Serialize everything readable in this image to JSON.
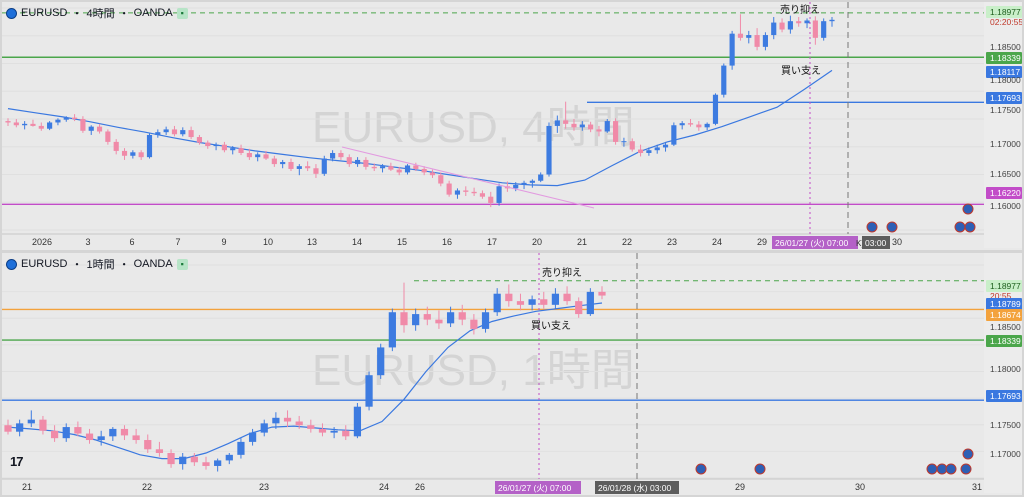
{
  "theme": {
    "up": "#3d7be0",
    "down": "#f08aa8",
    "ma": "#3a78e0",
    "green": "#4ba64b",
    "orange": "#f3a23c",
    "purple": "#c24cc8",
    "blue_line": "#3a78e0",
    "dash_green": "#6ac46a"
  },
  "top": {
    "header": {
      "symbol": "EURUSD",
      "sep1": "・",
      "tf": "4時間",
      "sep2": "・",
      "broker": "OANDA"
    },
    "watermark": "EURUSD, 4時間",
    "price_labels": {
      "p1": "1.18977",
      "p2": "1.18500",
      "p3": "1.18339",
      "p4": "1.18117",
      "p5": "1.18000",
      "p6": "1.17693",
      "p7": "1.17500",
      "p8": "1.17000",
      "p9": "1.16500",
      "p10": "1.16220",
      "p11": "1.16000"
    },
    "countdown": "02:20:55",
    "x_ticks": [
      "2026",
      "3",
      "6",
      "7",
      "9",
      "10",
      "13",
      "14",
      "15",
      "16",
      "17",
      "20",
      "21",
      "22",
      "23",
      "24",
      "29",
      "30"
    ],
    "date_badge": "26/01/27 (火)  07:00",
    "date_badge_small": "K)",
    "time_badge": "03:00",
    "annotations": {
      "sell": "売り抑え",
      "buy": "買い支え"
    }
  },
  "bottom": {
    "header": {
      "symbol": "EURUSD",
      "sep1": "・",
      "tf": "1時間",
      "sep2": "・",
      "broker": "OANDA"
    },
    "watermark": "EURUSD, 1時間",
    "price_labels": {
      "p1": "1.18977",
      "p2": "20:55",
      "p3": "1.18789",
      "p4": "1.18674",
      "p5": "1.18500",
      "p6": "1.18339",
      "p7": "1.18000",
      "p8": "1.17693",
      "p9": "1.17500",
      "p10": "1.17000"
    },
    "x_ticks": [
      "21",
      "22",
      "23",
      "24",
      "26",
      "29",
      "30",
      "31"
    ],
    "date_badge": "26/01/27 (火)  07:00",
    "date_badge2": "26/01/28 (水)  03:00",
    "annotations": {
      "sell": "売り抑え",
      "buy": "買い支え"
    },
    "tv_logo": "17"
  },
  "chart_data": [
    {
      "type": "candlestick",
      "title": "EURUSD・4時間・OANDA",
      "ylim": [
        1.1585,
        1.1905
      ],
      "x_ticks": [
        "2026",
        "3",
        "6",
        "7",
        "9",
        "10",
        "13",
        "14",
        "15",
        "16",
        "17",
        "20",
        "21",
        "22",
        "23",
        "24",
        "29",
        "30"
      ],
      "candles": [
        [
          1.1742,
          1.1746,
          1.1735,
          1.174
        ],
        [
          1.174,
          1.1745,
          1.1733,
          1.1736
        ],
        [
          1.1736,
          1.1742,
          1.173,
          1.1738
        ],
        [
          1.1738,
          1.1744,
          1.1734,
          1.1735
        ],
        [
          1.1735,
          1.174,
          1.1728,
          1.1731
        ],
        [
          1.1731,
          1.1742,
          1.1729,
          1.174
        ],
        [
          1.174,
          1.1746,
          1.1736,
          1.1744
        ],
        [
          1.1744,
          1.1749,
          1.1741,
          1.1747
        ],
        [
          1.1747,
          1.1752,
          1.1742,
          1.1745
        ],
        [
          1.1745,
          1.1749,
          1.1725,
          1.1728
        ],
        [
          1.1728,
          1.1736,
          1.1722,
          1.1734
        ],
        [
          1.1734,
          1.1738,
          1.1724,
          1.1727
        ],
        [
          1.1727,
          1.173,
          1.1708,
          1.1712
        ],
        [
          1.1712,
          1.1716,
          1.1694,
          1.1699
        ],
        [
          1.1699,
          1.1703,
          1.1686,
          1.1692
        ],
        [
          1.1692,
          1.17,
          1.1688,
          1.1697
        ],
        [
          1.1697,
          1.17,
          1.1686,
          1.169
        ],
        [
          1.169,
          1.1724,
          1.1688,
          1.1722
        ],
        [
          1.1722,
          1.173,
          1.1718,
          1.1726
        ],
        [
          1.1726,
          1.1734,
          1.1722,
          1.173
        ],
        [
          1.173,
          1.1735,
          1.172,
          1.1723
        ],
        [
          1.1723,
          1.1733,
          1.172,
          1.1729
        ],
        [
          1.1729,
          1.1734,
          1.1716,
          1.1719
        ],
        [
          1.1719,
          1.1722,
          1.1708,
          1.1711
        ],
        [
          1.1711,
          1.1714,
          1.1702,
          1.1706
        ],
        [
          1.1706,
          1.1711,
          1.17,
          1.1708
        ],
        [
          1.1708,
          1.1712,
          1.1697,
          1.17
        ],
        [
          1.17,
          1.1706,
          1.1694,
          1.1703
        ],
        [
          1.1703,
          1.1708,
          1.1693,
          1.1696
        ],
        [
          1.1696,
          1.1702,
          1.1686,
          1.169
        ],
        [
          1.169,
          1.1697,
          1.1684,
          1.1694
        ],
        [
          1.1694,
          1.1699,
          1.1686,
          1.1688
        ],
        [
          1.1688,
          1.1692,
          1.1676,
          1.168
        ],
        [
          1.168,
          1.1686,
          1.1674,
          1.1683
        ],
        [
          1.1683,
          1.1688,
          1.167,
          1.1673
        ],
        [
          1.1673,
          1.168,
          1.1664,
          1.1677
        ],
        [
          1.1677,
          1.1684,
          1.167,
          1.1674
        ],
        [
          1.1674,
          1.168,
          1.166,
          1.1666
        ],
        [
          1.1666,
          1.1692,
          1.1663,
          1.1688
        ],
        [
          1.1688,
          1.17,
          1.1684,
          1.1696
        ],
        [
          1.1696,
          1.17,
          1.1686,
          1.169
        ],
        [
          1.169,
          1.1694,
          1.1676,
          1.168
        ],
        [
          1.168,
          1.169,
          1.1676,
          1.1686
        ],
        [
          1.1686,
          1.169,
          1.1672,
          1.1676
        ],
        [
          1.1676,
          1.1681,
          1.167,
          1.1674
        ],
        [
          1.1674,
          1.168,
          1.1668,
          1.1677
        ],
        [
          1.1677,
          1.1682,
          1.167,
          1.1672
        ],
        [
          1.1672,
          1.1676,
          1.1664,
          1.1668
        ],
        [
          1.1668,
          1.168,
          1.1665,
          1.1678
        ],
        [
          1.1678,
          1.1682,
          1.167,
          1.1673
        ],
        [
          1.1673,
          1.1677,
          1.1664,
          1.1668
        ],
        [
          1.1668,
          1.1672,
          1.166,
          1.1664
        ],
        [
          1.1664,
          1.1668,
          1.1648,
          1.1652
        ],
        [
          1.1652,
          1.1656,
          1.1633,
          1.1636
        ],
        [
          1.1636,
          1.1645,
          1.163,
          1.1642
        ],
        [
          1.1642,
          1.1648,
          1.1634,
          1.164
        ],
        [
          1.164,
          1.1646,
          1.1634,
          1.1638
        ],
        [
          1.1638,
          1.1642,
          1.163,
          1.1633
        ],
        [
          1.1633,
          1.164,
          1.1618,
          1.1624
        ],
        [
          1.1624,
          1.1652,
          1.162,
          1.1648
        ],
        [
          1.1648,
          1.1655,
          1.164,
          1.1645
        ],
        [
          1.1645,
          1.1654,
          1.1641,
          1.165
        ],
        [
          1.165,
          1.1656,
          1.1644,
          1.1653
        ],
        [
          1.1653,
          1.1658,
          1.1646,
          1.1656
        ],
        [
          1.1656,
          1.1668,
          1.1654,
          1.1665
        ],
        [
          1.1665,
          1.174,
          1.1662,
          1.1735
        ],
        [
          1.1735,
          1.175,
          1.1725,
          1.1743
        ],
        [
          1.1743,
          1.177,
          1.1731,
          1.1738
        ],
        [
          1.1738,
          1.1745,
          1.1728,
          1.1733
        ],
        [
          1.1733,
          1.1742,
          1.1728,
          1.1737
        ],
        [
          1.1737,
          1.1741,
          1.1726,
          1.173
        ],
        [
          1.173,
          1.1735,
          1.172,
          1.1727
        ],
        [
          1.1727,
          1.1745,
          1.1725,
          1.1742
        ],
        [
          1.1742,
          1.1746,
          1.1708,
          1.1712
        ],
        [
          1.1712,
          1.1718,
          1.1705,
          1.1713
        ],
        [
          1.1713,
          1.1717,
          1.1698,
          1.1701
        ],
        [
          1.1701,
          1.1708,
          1.1691,
          1.1696
        ],
        [
          1.1696,
          1.1704,
          1.1692,
          1.17
        ],
        [
          1.17,
          1.1708,
          1.1695,
          1.1704
        ],
        [
          1.1704,
          1.1712,
          1.1698,
          1.1708
        ],
        [
          1.1708,
          1.174,
          1.1706,
          1.1736
        ],
        [
          1.1736,
          1.1742,
          1.173,
          1.1739
        ],
        [
          1.1739,
          1.1745,
          1.1734,
          1.1737
        ],
        [
          1.1737,
          1.1742,
          1.1728,
          1.1733
        ],
        [
          1.1733,
          1.174,
          1.1729,
          1.1738
        ],
        [
          1.1738,
          1.1782,
          1.1736,
          1.178
        ],
        [
          1.178,
          1.1825,
          1.1776,
          1.1822
        ],
        [
          1.1822,
          1.1872,
          1.1816,
          1.1868
        ],
        [
          1.1868,
          1.1896,
          1.1858,
          1.1862
        ],
        [
          1.1862,
          1.1872,
          1.1854,
          1.1866
        ],
        [
          1.1866,
          1.1876,
          1.1844,
          1.1849
        ],
        [
          1.1849,
          1.187,
          1.1844,
          1.1866
        ],
        [
          1.1866,
          1.1892,
          1.186,
          1.1884
        ],
        [
          1.1884,
          1.189,
          1.187,
          1.1874
        ],
        [
          1.1874,
          1.1894,
          1.1868,
          1.1886
        ],
        [
          1.1886,
          1.1892,
          1.1878,
          1.1883
        ],
        [
          1.1883,
          1.189,
          1.1876,
          1.1887
        ],
        [
          1.1887,
          1.1893,
          1.1852,
          1.1862
        ],
        [
          1.1862,
          1.189,
          1.1858,
          1.1886
        ],
        [
          1.1886,
          1.1892,
          1.1878,
          1.1888
        ]
      ],
      "ma": [
        1.176,
        1.1754,
        1.1748,
        1.1741,
        1.1733,
        1.1726,
        1.1718,
        1.1711,
        1.1705,
        1.1699,
        1.1694,
        1.1689,
        1.1685,
        1.1681,
        1.1676,
        1.1671,
        1.1665,
        1.1659,
        1.1653,
        1.165,
        1.1649,
        1.1657,
        1.1678,
        1.1698,
        1.1712,
        1.1722,
        1.1734,
        1.1748,
        1.1762,
        1.1788,
        1.1815
      ],
      "hlines": [
        {
          "price": 1.1898,
          "style": "dashed",
          "color": "green"
        },
        {
          "price": 1.1834,
          "style": "solid",
          "color": "green"
        },
        {
          "price": 1.1769,
          "style": "solid",
          "color": "blue"
        },
        {
          "price": 1.1622,
          "style": "solid",
          "color": "purple"
        }
      ]
    },
    {
      "type": "candlestick",
      "title": "EURUSD・1時間・OANDA",
      "ylim": [
        1.1685,
        1.1915
      ],
      "x_ticks": [
        "21",
        "22",
        "23",
        "24",
        "26",
        "29",
        "30",
        "31"
      ],
      "candles": [
        [
          1.1742,
          1.1748,
          1.1732,
          1.1735
        ],
        [
          1.1735,
          1.1748,
          1.173,
          1.1744
        ],
        [
          1.1744,
          1.1758,
          1.174,
          1.1748
        ],
        [
          1.1748,
          1.1752,
          1.1732,
          1.1736
        ],
        [
          1.1736,
          1.1742,
          1.1724,
          1.1728
        ],
        [
          1.1728,
          1.1744,
          1.1724,
          1.174
        ],
        [
          1.174,
          1.1746,
          1.173,
          1.1733
        ],
        [
          1.1733,
          1.1738,
          1.1722,
          1.1726
        ],
        [
          1.1726,
          1.1736,
          1.172,
          1.173
        ],
        [
          1.173,
          1.174,
          1.1725,
          1.1738
        ],
        [
          1.1738,
          1.1742,
          1.1726,
          1.1731
        ],
        [
          1.1731,
          1.1738,
          1.1722,
          1.1726
        ],
        [
          1.1726,
          1.1732,
          1.1712,
          1.1716
        ],
        [
          1.1716,
          1.1724,
          1.1708,
          1.1712
        ],
        [
          1.1712,
          1.1716,
          1.1696,
          1.17
        ],
        [
          1.17,
          1.1712,
          1.1694,
          1.1708
        ],
        [
          1.1708,
          1.1712,
          1.1698,
          1.1702
        ],
        [
          1.1702,
          1.1708,
          1.1694,
          1.1698
        ],
        [
          1.1698,
          1.1706,
          1.1692,
          1.1704
        ],
        [
          1.1704,
          1.1712,
          1.17,
          1.171
        ],
        [
          1.171,
          1.1728,
          1.1706,
          1.1724
        ],
        [
          1.1724,
          1.1738,
          1.172,
          1.1734
        ],
        [
          1.1734,
          1.1748,
          1.173,
          1.1744
        ],
        [
          1.1744,
          1.1756,
          1.1738,
          1.175
        ],
        [
          1.175,
          1.1758,
          1.174,
          1.1746
        ],
        [
          1.1746,
          1.1752,
          1.1738,
          1.1742
        ],
        [
          1.1742,
          1.1748,
          1.1734,
          1.1738
        ],
        [
          1.1738,
          1.1744,
          1.173,
          1.1734
        ],
        [
          1.1734,
          1.174,
          1.1728,
          1.1736
        ],
        [
          1.1736,
          1.1742,
          1.1726,
          1.173
        ],
        [
          1.173,
          1.1766,
          1.1728,
          1.1762
        ],
        [
          1.1762,
          1.18,
          1.1758,
          1.1796
        ],
        [
          1.1796,
          1.183,
          1.1792,
          1.1826
        ],
        [
          1.1826,
          1.1868,
          1.1822,
          1.1864
        ],
        [
          1.1864,
          1.1896,
          1.1842,
          1.185
        ],
        [
          1.185,
          1.1868,
          1.1844,
          1.1862
        ],
        [
          1.1862,
          1.187,
          1.185,
          1.1856
        ],
        [
          1.1856,
          1.1866,
          1.1846,
          1.1852
        ],
        [
          1.1852,
          1.187,
          1.1848,
          1.1864
        ],
        [
          1.1864,
          1.1872,
          1.185,
          1.1856
        ],
        [
          1.1856,
          1.1862,
          1.184,
          1.1846
        ],
        [
          1.1846,
          1.1868,
          1.1842,
          1.1864
        ],
        [
          1.1864,
          1.189,
          1.186,
          1.1884
        ],
        [
          1.1884,
          1.1894,
          1.187,
          1.1876
        ],
        [
          1.1876,
          1.1884,
          1.1866,
          1.1872
        ],
        [
          1.1872,
          1.1882,
          1.1866,
          1.1878
        ],
        [
          1.1878,
          1.1886,
          1.1868,
          1.1872
        ],
        [
          1.1872,
          1.189,
          1.1868,
          1.1884
        ],
        [
          1.1884,
          1.1892,
          1.1872,
          1.1876
        ],
        [
          1.1876,
          1.188,
          1.1858,
          1.1862
        ],
        [
          1.1862,
          1.189,
          1.186,
          1.1886
        ],
        [
          1.1886,
          1.1892,
          1.1878,
          1.1882
        ]
      ],
      "ma": [
        1.174,
        1.1738,
        1.1736,
        1.1732,
        1.1726,
        1.1718,
        1.171,
        1.1706,
        1.1706,
        1.1712,
        1.1722,
        1.1733,
        1.174,
        1.1741,
        1.1739,
        1.1737,
        1.1736,
        1.1746,
        1.177,
        1.18,
        1.1826,
        1.1844,
        1.1854,
        1.186,
        1.1865,
        1.1868,
        1.1871,
        1.1874
      ],
      "hlines": [
        {
          "price": 1.1898,
          "style": "dashed",
          "color": "green"
        },
        {
          "price": 1.1867,
          "style": "solid",
          "color": "orange"
        },
        {
          "price": 1.1834,
          "style": "solid",
          "color": "green"
        },
        {
          "price": 1.1769,
          "style": "solid",
          "color": "blue"
        }
      ]
    }
  ]
}
